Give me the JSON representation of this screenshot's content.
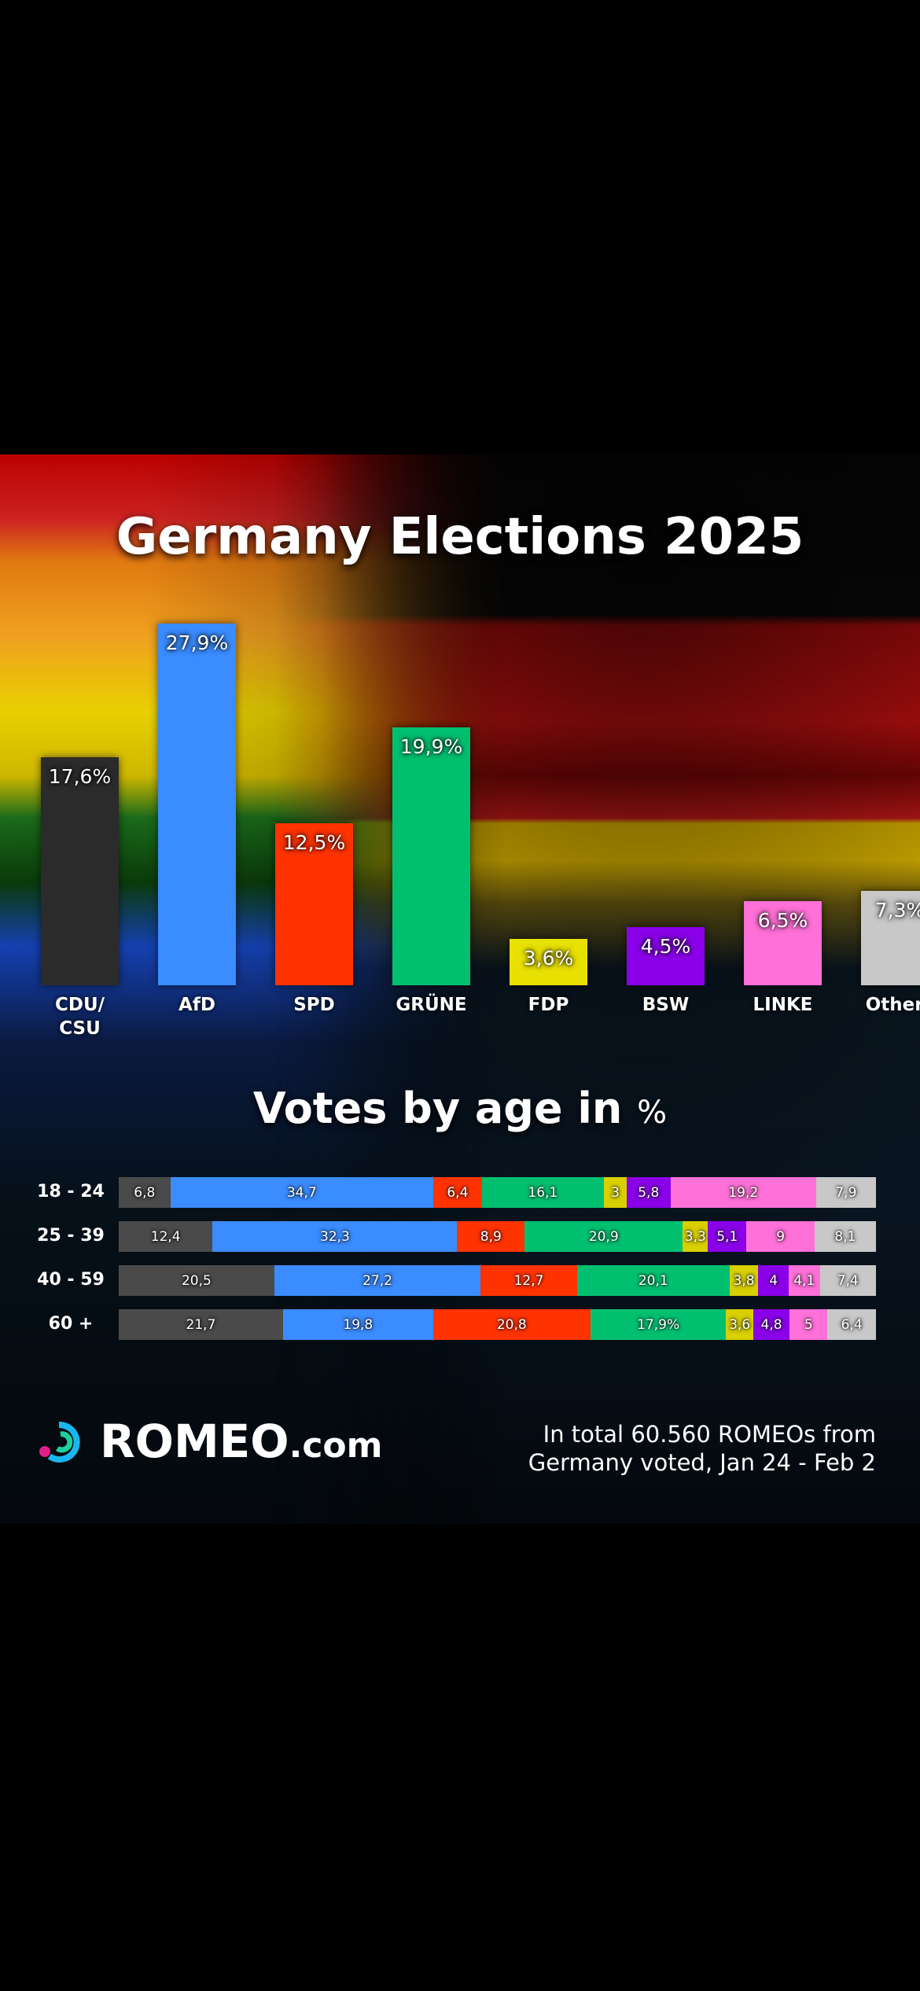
{
  "chart_data": [
    {
      "type": "bar",
      "title": "Germany Elections 2025",
      "categories": [
        "CDU/ CSU",
        "AfD",
        "SPD",
        "GRÜNE",
        "FDP",
        "BSW",
        "LINKE",
        "Others"
      ],
      "values": [
        17.6,
        27.9,
        12.5,
        19.9,
        3.6,
        4.5,
        6.5,
        7.3
      ],
      "value_labels": [
        "17,6%",
        "27,9%",
        "12,5%",
        "19,9%",
        "3,6%",
        "4,5%",
        "6,5%",
        "7,3%"
      ],
      "colors": [
        "#2b2b2b",
        "#3a8cff",
        "#ff3300",
        "#00c070",
        "#e8e000",
        "#8a00e8",
        "#ff70d8",
        "#c8c8c8"
      ],
      "xlabel": "",
      "ylabel": "",
      "ylim": [
        0,
        30
      ]
    },
    {
      "type": "bar",
      "stacked": true,
      "orientation": "horizontal",
      "title": "Votes by age in %",
      "title_main": "Votes by age in",
      "title_unit": "%",
      "categories": [
        "18 - 24",
        "25 - 39",
        "40 - 59",
        "60 +"
      ],
      "series_parties": [
        "CDU/CSU",
        "AfD",
        "SPD",
        "GRÜNE",
        "FDP",
        "BSW",
        "LINKE",
        "Others"
      ],
      "segment_colors": [
        "#4a4a4a",
        "#3a8cff",
        "#ff3300",
        "#00c070",
        "#d8d000",
        "#8a00e8",
        "#ff70d8",
        "#c8c8c8"
      ],
      "rows": [
        {
          "values": [
            6.8,
            34.7,
            6.4,
            16.1,
            3,
            5.8,
            19.2,
            7.9
          ],
          "labels": [
            "6,8",
            "34,7",
            "6,4",
            "16,1",
            "3",
            "5,8",
            "19,2",
            "7,9"
          ]
        },
        {
          "values": [
            12.4,
            32.3,
            8.9,
            20.9,
            3.3,
            5.1,
            9,
            8.1
          ],
          "labels": [
            "12,4",
            "32,3",
            "8,9",
            "20,9",
            "3,3",
            "5,1",
            "9",
            "8,1"
          ]
        },
        {
          "values": [
            20.5,
            27.2,
            12.7,
            20.1,
            3.8,
            4,
            4.1,
            7.4
          ],
          "labels": [
            "20,5",
            "27,2",
            "12,7",
            "20,1",
            "3,8",
            "4",
            "4,1",
            "7,4"
          ]
        },
        {
          "values": [
            21.7,
            19.8,
            20.8,
            17.9,
            3.6,
            4.8,
            5,
            6.4
          ],
          "labels": [
            "21,7",
            "19,8",
            "20,8",
            "17,9%",
            "3,6",
            "4,8",
            "5",
            "6,4"
          ]
        }
      ]
    }
  ],
  "brand": {
    "name": "ROMEO",
    "suffix": ".com"
  },
  "footer": {
    "line1": "In total 60.560 ROMEOs from",
    "line2": "Germany voted, Jan 24 - Feb 2"
  }
}
